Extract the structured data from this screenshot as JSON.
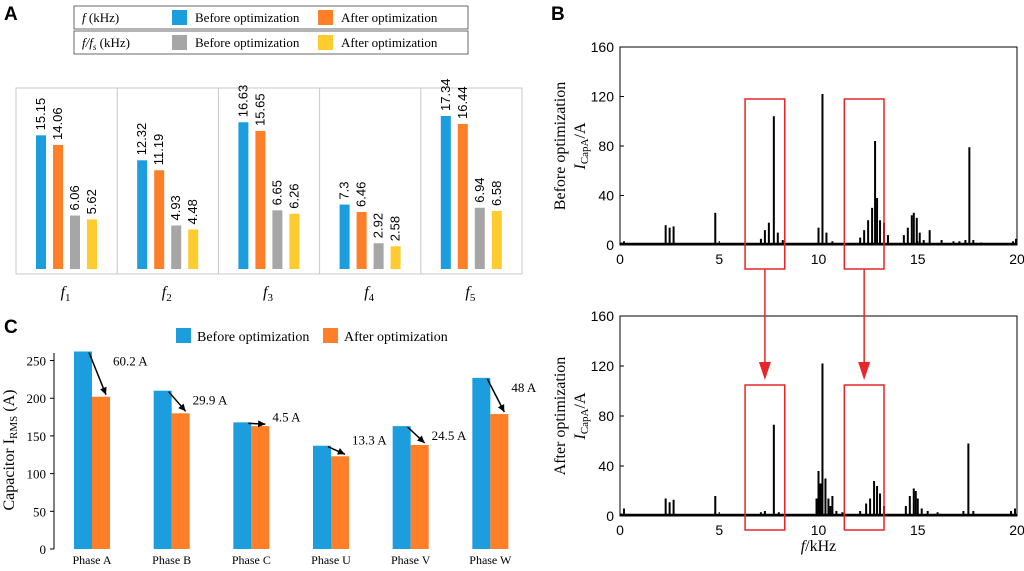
{
  "colors": {
    "blue": "#1B9DDE",
    "orange": "#FF7E28",
    "gray": "#A6A6A6",
    "yellow": "#FFCC2F",
    "black": "#000000",
    "red": "#E8262A",
    "panel_border": "#C8C8C8"
  },
  "chart_data": [
    {
      "panel": "A",
      "type": "bar",
      "categories": [
        "f1",
        "f2",
        "f3",
        "f4",
        "f5"
      ],
      "category_labels": [
        {
          "base": "f",
          "sub": "1"
        },
        {
          "base": "f",
          "sub": "2"
        },
        {
          "base": "f",
          "sub": "3"
        },
        {
          "base": "f",
          "sub": "4"
        },
        {
          "base": "f",
          "sub": "5"
        }
      ],
      "legend": {
        "rows": [
          {
            "label": {
              "pre": "f",
              "sub": "",
              "post": " (kHz)"
            },
            "entries": [
              "Before optimization",
              "After optimization"
            ]
          },
          {
            "label": {
              "pre": "f/f",
              "sub": "s",
              "post": " (kHz)"
            },
            "entries": [
              "Before optimization",
              "After optimization"
            ]
          }
        ]
      },
      "series": [
        {
          "name": "f (kHz) Before optimization",
          "color_key": "blue",
          "values": [
            15.15,
            12.32,
            16.63,
            7.3,
            17.34
          ]
        },
        {
          "name": "f (kHz) After optimization",
          "color_key": "orange",
          "values": [
            14.06,
            11.19,
            15.65,
            6.46,
            16.44
          ]
        },
        {
          "name": "f/fs (kHz) Before optimization",
          "color_key": "gray",
          "values": [
            6.06,
            4.93,
            6.65,
            2.92,
            6.94
          ]
        },
        {
          "name": "f/fs (kHz) After optimization",
          "color_key": "yellow",
          "values": [
            5.62,
            4.48,
            6.26,
            2.58,
            6.58
          ]
        }
      ],
      "labels": [
        [
          "15.15",
          "14.06",
          "6.06",
          "5.62"
        ],
        [
          "12.32",
          "11.19",
          "4.93",
          "4.48"
        ],
        [
          "16.63",
          "15.65",
          "6.65",
          "6.26"
        ],
        [
          "7.3",
          "6.46",
          "2.92",
          "2.58"
        ],
        [
          "17.34",
          "16.44",
          "6.94",
          "6.58"
        ]
      ],
      "ylim": [
        0,
        20
      ]
    },
    {
      "panel": "B",
      "type": "line",
      "subplots": [
        {
          "name": "Before optimization",
          "ylabel_title": "Before optimization",
          "ylabel": {
            "pre": "I",
            "sub": "CapA",
            "post": "/A"
          },
          "xlim": [
            0,
            20
          ],
          "ylim": [
            0,
            160
          ],
          "xticks": [
            0,
            5,
            10,
            15,
            20
          ],
          "yticks": [
            0,
            40,
            80,
            120,
            160
          ],
          "peaks": [
            [
              0.05,
              2
            ],
            [
              0.2,
              3
            ],
            [
              2.3,
              16
            ],
            [
              2.5,
              14
            ],
            [
              2.7,
              15
            ],
            [
              4.8,
              26
            ],
            [
              7.1,
              5
            ],
            [
              7.3,
              12
            ],
            [
              7.5,
              18
            ],
            [
              7.75,
              104
            ],
            [
              7.95,
              10
            ],
            [
              8.2,
              4
            ],
            [
              10.0,
              14
            ],
            [
              10.2,
              122
            ],
            [
              10.4,
              10
            ],
            [
              10.7,
              3
            ],
            [
              12.1,
              6
            ],
            [
              12.3,
              12
            ],
            [
              12.5,
              20
            ],
            [
              12.7,
              30
            ],
            [
              12.85,
              84
            ],
            [
              12.95,
              38
            ],
            [
              13.1,
              20
            ],
            [
              13.3,
              18
            ],
            [
              13.5,
              8
            ],
            [
              14.3,
              8
            ],
            [
              14.5,
              14
            ],
            [
              14.7,
              24
            ],
            [
              14.8,
              26
            ],
            [
              14.95,
              22
            ],
            [
              15.1,
              10
            ],
            [
              15.3,
              4
            ],
            [
              15.6,
              12
            ],
            [
              16.2,
              4
            ],
            [
              16.8,
              3
            ],
            [
              17.1,
              3
            ],
            [
              17.4,
              4
            ],
            [
              17.6,
              79
            ],
            [
              17.8,
              4
            ],
            [
              18.2,
              2
            ],
            [
              19.8,
              3
            ],
            [
              19.95,
              5
            ]
          ],
          "highlight_boxes": [
            [
              6.3,
              8.3
            ],
            [
              11.3,
              13.3
            ]
          ]
        },
        {
          "name": "After optimization",
          "ylabel_title": "After optimization",
          "ylabel": {
            "pre": "I",
            "sub": "CapA",
            "post": "/A"
          },
          "xlabel": {
            "pre": "f",
            "post": "/kHz"
          },
          "xlim": [
            0,
            20
          ],
          "ylim": [
            0,
            160
          ],
          "xticks": [
            0,
            5,
            10,
            15,
            20
          ],
          "yticks": [
            0,
            40,
            80,
            120,
            160
          ],
          "peaks": [
            [
              0.05,
              2
            ],
            [
              0.2,
              6
            ],
            [
              2.3,
              14
            ],
            [
              2.5,
              11
            ],
            [
              2.7,
              13
            ],
            [
              4.8,
              16
            ],
            [
              7.1,
              3
            ],
            [
              7.3,
              4
            ],
            [
              7.75,
              73
            ],
            [
              8.0,
              3
            ],
            [
              9.9,
              14
            ],
            [
              10.0,
              36
            ],
            [
              10.1,
              26
            ],
            [
              10.2,
              122
            ],
            [
              10.35,
              30
            ],
            [
              10.5,
              14
            ],
            [
              10.6,
              8
            ],
            [
              10.7,
              16
            ],
            [
              10.9,
              4
            ],
            [
              11.2,
              3
            ],
            [
              12.1,
              4
            ],
            [
              12.4,
              10
            ],
            [
              12.6,
              14
            ],
            [
              12.8,
              28
            ],
            [
              12.95,
              24
            ],
            [
              13.1,
              18
            ],
            [
              13.3,
              8
            ],
            [
              14.4,
              8
            ],
            [
              14.6,
              16
            ],
            [
              14.8,
              22
            ],
            [
              14.9,
              20
            ],
            [
              15.0,
              14
            ],
            [
              15.2,
              6
            ],
            [
              15.5,
              4
            ],
            [
              16.0,
              3
            ],
            [
              17.3,
              4
            ],
            [
              17.55,
              58
            ],
            [
              17.8,
              4
            ],
            [
              19.7,
              4
            ],
            [
              19.9,
              6
            ]
          ],
          "highlight_boxes": [
            [
              6.3,
              8.3
            ],
            [
              11.3,
              13.3
            ]
          ]
        }
      ]
    },
    {
      "panel": "C",
      "type": "bar",
      "categories": [
        "Phase A",
        "Phase B",
        "Phase C",
        "Phase U",
        "Phase V",
        "Phase W"
      ],
      "series": [
        {
          "name": "Before optimization",
          "color_key": "blue",
          "values": [
            262,
            210,
            168,
            137,
            163,
            227
          ]
        },
        {
          "name": "After optimization",
          "color_key": "orange",
          "values": [
            202,
            180,
            163,
            123,
            138,
            179
          ]
        }
      ],
      "reduction_labels": [
        "60.2 A",
        "29.9 A",
        "4.5 A",
        "13.3 A",
        "24.5 A",
        "48 A"
      ],
      "ylabel": {
        "pre": "Capacitor I",
        "sub": "RMS",
        "post": " (A)"
      },
      "ylim": [
        0,
        260
      ],
      "yticks": [
        0,
        50,
        100,
        150,
        200,
        250
      ]
    }
  ],
  "panels": {
    "a_label": "A",
    "b_label": "B",
    "c_label": "C"
  }
}
